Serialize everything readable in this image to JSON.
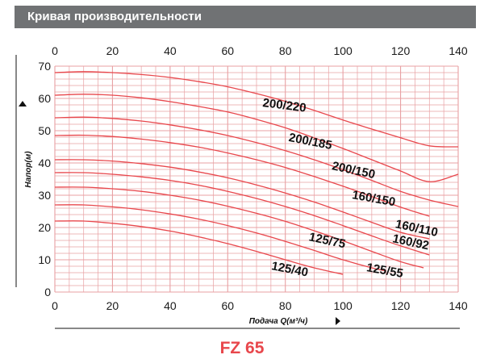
{
  "header": {
    "title": "Кривая производительности"
  },
  "model_label": "FZ 65",
  "chart_data": {
    "type": "line",
    "title": "",
    "xlabel": "Подача Q(м³/ч)",
    "ylabel": "Напор(м)",
    "xlim": [
      0,
      140
    ],
    "ylim": [
      0,
      70
    ],
    "x_ticks": [
      0,
      20,
      40,
      60,
      80,
      100,
      120,
      140
    ],
    "y_ticks": [
      0,
      10,
      20,
      30,
      40,
      50,
      60,
      70
    ],
    "grid": true,
    "series_color": "#e8474c",
    "grid_color": "#e8a0a3",
    "series": [
      {
        "name": "200/220",
        "label_at": [
          72,
          57.5
        ],
        "label_rot": 7,
        "points": [
          [
            0,
            68
          ],
          [
            10,
            68.3
          ],
          [
            20,
            68
          ],
          [
            30,
            67.4
          ],
          [
            40,
            66.5
          ],
          [
            50,
            65.2
          ],
          [
            60,
            63.6
          ],
          [
            70,
            61.5
          ],
          [
            80,
            59.1
          ],
          [
            90,
            56.3
          ],
          [
            100,
            53.3
          ],
          [
            110,
            50.5
          ],
          [
            120,
            47.8
          ],
          [
            130,
            45.3
          ],
          [
            140,
            45
          ]
        ]
      },
      {
        "name": "200/185",
        "label_at": [
          81,
          46.8
        ],
        "label_rot": 11,
        "points": [
          [
            0,
            61
          ],
          [
            10,
            61.3
          ],
          [
            20,
            61
          ],
          [
            30,
            60.2
          ],
          [
            40,
            59
          ],
          [
            50,
            57.5
          ],
          [
            60,
            55.8
          ],
          [
            70,
            53.5
          ],
          [
            80,
            50.9
          ],
          [
            90,
            47.8
          ],
          [
            100,
            44.5
          ],
          [
            110,
            41
          ],
          [
            120,
            37.5
          ],
          [
            130,
            34.2
          ],
          [
            140,
            36.5
          ]
        ]
      },
      {
        "name": "200/150",
        "label_at": [
          96,
          38
        ],
        "label_rot": 12,
        "points": [
          [
            0,
            54
          ],
          [
            10,
            54.2
          ],
          [
            20,
            53.8
          ],
          [
            30,
            53
          ],
          [
            40,
            51.8
          ],
          [
            50,
            50.3
          ],
          [
            60,
            48.5
          ],
          [
            70,
            46.3
          ],
          [
            80,
            43.8
          ],
          [
            90,
            41
          ],
          [
            100,
            37.9
          ],
          [
            110,
            34.6
          ],
          [
            120,
            31.2
          ],
          [
            130,
            28.5
          ],
          [
            140,
            26.5
          ]
        ]
      },
      {
        "name": "160/150",
        "label_at": [
          103,
          29
        ],
        "label_rot": 10,
        "points": [
          [
            0,
            48.5
          ],
          [
            10,
            48.6
          ],
          [
            20,
            48.2
          ],
          [
            30,
            47.4
          ],
          [
            40,
            46.3
          ],
          [
            50,
            44.9
          ],
          [
            60,
            43.1
          ],
          [
            70,
            41
          ],
          [
            80,
            38.6
          ],
          [
            90,
            35.8
          ],
          [
            100,
            32.8
          ],
          [
            110,
            29.6
          ],
          [
            120,
            26.3
          ],
          [
            130,
            23.5
          ]
        ]
      },
      {
        "name": "160/110",
        "label_at": [
          118,
          20
        ],
        "label_rot": 12,
        "points": [
          [
            0,
            41
          ],
          [
            10,
            41
          ],
          [
            20,
            40.6
          ],
          [
            30,
            39.8
          ],
          [
            40,
            38.7
          ],
          [
            50,
            37.2
          ],
          [
            60,
            35.4
          ],
          [
            70,
            33.2
          ],
          [
            80,
            30.7
          ],
          [
            90,
            27.9
          ],
          [
            100,
            24.8
          ],
          [
            110,
            21.6
          ],
          [
            120,
            18.5
          ],
          [
            130,
            16.5
          ]
        ]
      },
      {
        "name": "160/92",
        "label_at": [
          117,
          15.5
        ],
        "label_rot": 12,
        "points": [
          [
            0,
            37
          ],
          [
            10,
            37
          ],
          [
            20,
            36.5
          ],
          [
            30,
            35.7
          ],
          [
            40,
            34.6
          ],
          [
            50,
            33.1
          ],
          [
            60,
            31.2
          ],
          [
            70,
            29
          ],
          [
            80,
            26.5
          ],
          [
            90,
            23.7
          ],
          [
            100,
            20.6
          ],
          [
            110,
            17.4
          ],
          [
            120,
            14.3
          ],
          [
            130,
            11.5
          ]
        ]
      },
      {
        "name": "125/75",
        "label_at": [
          88,
          16
        ],
        "label_rot": 12,
        "points": [
          [
            0,
            32.5
          ],
          [
            10,
            32.5
          ],
          [
            20,
            32
          ],
          [
            30,
            31.2
          ],
          [
            40,
            30
          ],
          [
            50,
            28.5
          ],
          [
            60,
            26.6
          ],
          [
            70,
            24.4
          ],
          [
            80,
            21.9
          ],
          [
            90,
            19
          ],
          [
            100,
            15.9
          ],
          [
            110,
            12.6
          ],
          [
            120,
            9.4
          ],
          [
            128,
            7.5
          ]
        ]
      },
      {
        "name": "125/55",
        "label_at": [
          108,
          6.5
        ],
        "label_rot": 10,
        "points": [
          [
            0,
            27
          ],
          [
            10,
            27
          ],
          [
            20,
            26.4
          ],
          [
            30,
            25.5
          ],
          [
            40,
            24.2
          ],
          [
            50,
            22.6
          ],
          [
            60,
            20.6
          ],
          [
            70,
            18.3
          ],
          [
            80,
            15.7
          ],
          [
            90,
            12.9
          ],
          [
            100,
            10
          ],
          [
            110,
            7.5
          ],
          [
            115,
            6.5
          ]
        ]
      },
      {
        "name": "125/40",
        "label_at": [
          75,
          7
        ],
        "label_rot": 11,
        "points": [
          [
            0,
            22
          ],
          [
            10,
            22
          ],
          [
            20,
            21.3
          ],
          [
            30,
            20.3
          ],
          [
            40,
            18.9
          ],
          [
            50,
            17.1
          ],
          [
            60,
            15
          ],
          [
            70,
            12.6
          ],
          [
            80,
            10
          ],
          [
            90,
            7.5
          ],
          [
            100,
            5.5
          ]
        ]
      }
    ]
  }
}
